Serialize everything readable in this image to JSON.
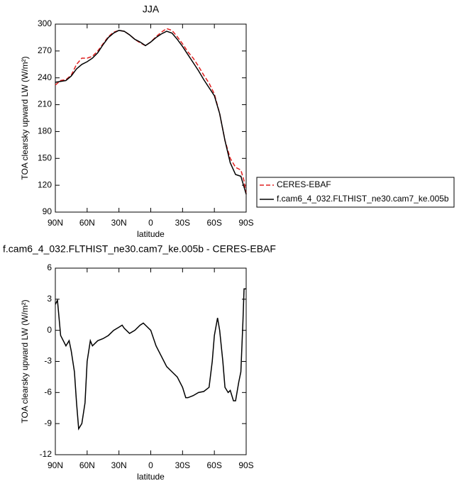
{
  "chart_data": [
    {
      "type": "line",
      "title": "JJA",
      "xlabel": "latitude",
      "ylabel": "TOA clearsky upward LW (W/m²)",
      "x": [
        90,
        85,
        80,
        75,
        70,
        65,
        60,
        55,
        50,
        45,
        40,
        35,
        30,
        25,
        20,
        15,
        10,
        5,
        0,
        -5,
        -10,
        -15,
        -20,
        -25,
        -30,
        -35,
        -40,
        -45,
        -50,
        -55,
        -60,
        -65,
        -70,
        -75,
        -80,
        -85,
        -88,
        -90
      ],
      "series": [
        {
          "name": "CERES-EBAF",
          "color": "#e02020",
          "dash": "dashed",
          "values": [
            232,
            237,
            238,
            243,
            255,
            262,
            262,
            264,
            270,
            278,
            286,
            291,
            293,
            292,
            288,
            283,
            279,
            276,
            280,
            286,
            291,
            295,
            293,
            286,
            278,
            269,
            262,
            253,
            243,
            234,
            222,
            200,
            170,
            150,
            140,
            137,
            125,
            110
          ]
        },
        {
          "name": "f.cam6_4_032.FLTHIST_ne30.cam7_ke.005b",
          "color": "#000000",
          "dash": "solid",
          "values": [
            235,
            236,
            237,
            242,
            250,
            255,
            258,
            262,
            268,
            277,
            285,
            290,
            293,
            292,
            288,
            283,
            280,
            276,
            280,
            285,
            289,
            292,
            290,
            283,
            275,
            266,
            257,
            248,
            238,
            229,
            220,
            200,
            170,
            145,
            132,
            130,
            118,
            110
          ]
        }
      ],
      "xlim": [
        90,
        -90
      ],
      "xticks": [
        {
          "value": 90,
          "label": "90N"
        },
        {
          "value": 60,
          "label": "60N"
        },
        {
          "value": 30,
          "label": "30N"
        },
        0,
        {
          "value": -30,
          "label": "30S"
        },
        {
          "value": -60,
          "label": "60S"
        },
        {
          "value": -90,
          "label": "90S"
        }
      ],
      "ylim": [
        90,
        300
      ],
      "yticks": [
        90,
        120,
        150,
        180,
        210,
        240,
        270,
        300
      ],
      "legend": "right",
      "grid": false
    },
    {
      "type": "line",
      "title": "f.cam6_4_032.FLTHIST_ne30.cam7_ke.005b - CERES-EBAF",
      "xlabel": "latitude",
      "ylabel": "TOA clearsky upward LW (W/m²)",
      "x": [
        90,
        88,
        85,
        80,
        77,
        75,
        72,
        70,
        68,
        65,
        62,
        60,
        57,
        55,
        50,
        45,
        40,
        35,
        30,
        27,
        25,
        20,
        15,
        10,
        7,
        5,
        0,
        -5,
        -10,
        -15,
        -20,
        -25,
        -30,
        -33,
        -35,
        -40,
        -45,
        -50,
        -55,
        -58,
        -60,
        -63,
        -65,
        -68,
        -70,
        -73,
        -75,
        -78,
        -80,
        -83,
        -85,
        -87,
        -88,
        -90
      ],
      "series": [
        {
          "name": "difference",
          "color": "#000000",
          "dash": "solid",
          "values": [
            2.5,
            2.9,
            -0.5,
            -1.5,
            -1.0,
            -2,
            -4,
            -7,
            -9.5,
            -9,
            -7,
            -3,
            -1,
            -1.5,
            -1,
            -0.8,
            -0.5,
            0,
            0.3,
            0.5,
            0.2,
            -0.3,
            0,
            0.5,
            0.7,
            0.5,
            0,
            -1.5,
            -2.5,
            -3.5,
            -4,
            -4.5,
            -5.5,
            -6.5,
            -6.5,
            -6.3,
            -6,
            -5.9,
            -5.5,
            -3,
            -0.5,
            1.2,
            0,
            -3,
            -5.5,
            -6,
            -5.8,
            -6.8,
            -6.8,
            -5,
            -4,
            1,
            4,
            4
          ]
        }
      ],
      "xlim": [
        90,
        -90
      ],
      "xticks": [
        {
          "value": 90,
          "label": "90N"
        },
        {
          "value": 60,
          "label": "60N"
        },
        {
          "value": 30,
          "label": "30N"
        },
        0,
        {
          "value": -30,
          "label": "30S"
        },
        {
          "value": -60,
          "label": "60S"
        },
        {
          "value": -90,
          "label": "90S"
        }
      ],
      "ylim": [
        -12,
        6
      ],
      "yticks": [
        -12,
        -9,
        -6,
        -3,
        0,
        3,
        6
      ],
      "grid": false
    }
  ]
}
